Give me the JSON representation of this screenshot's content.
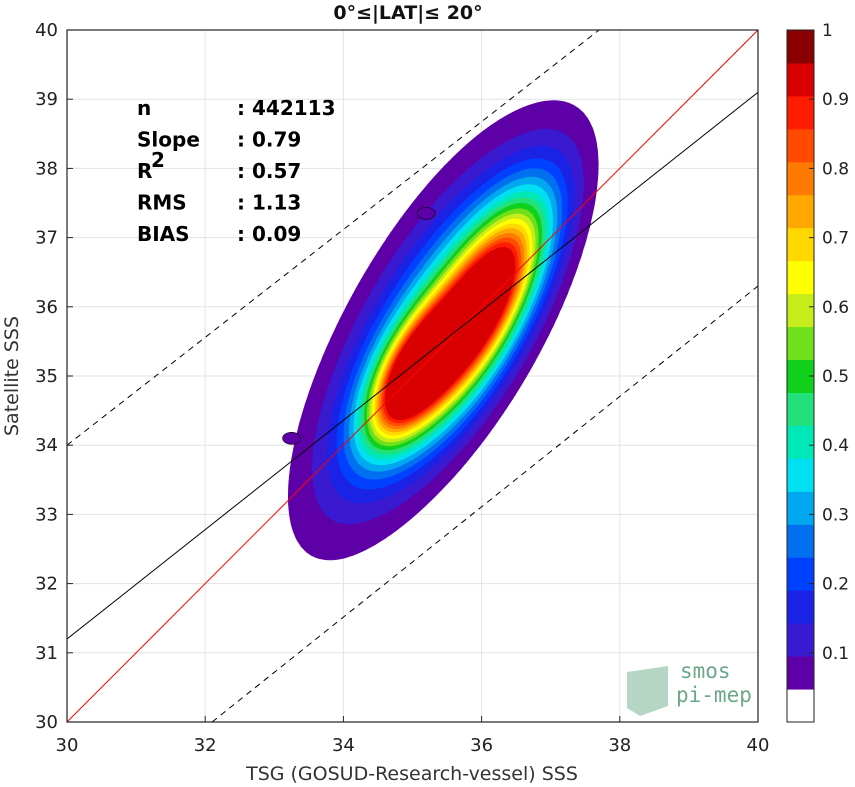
{
  "chart_data": {
    "type": "contour",
    "title": "0°≤|LAT|≤ 20°",
    "xlabel": "TSG (GOSUD-Research-vessel) SSS",
    "ylabel": "Satellite SSS",
    "xlim": [
      30,
      40
    ],
    "ylim": [
      30,
      40
    ],
    "xticks": [
      "30",
      "32",
      "34",
      "36",
      "38",
      "40"
    ],
    "yticks": [
      "30",
      "31",
      "32",
      "33",
      "34",
      "35",
      "36",
      "37",
      "38",
      "39",
      "40"
    ],
    "grid": true,
    "stats": [
      {
        "label": "n",
        "sep": ":",
        "value": "442113"
      },
      {
        "label": "Slope",
        "sep": ":",
        "value": "0.79"
      },
      {
        "label": "R",
        "sup": "2",
        "sep": ":",
        "value": "0.57"
      },
      {
        "label": "RMS",
        "sep": ":",
        "value": "1.13"
      },
      {
        "label": "BIAS",
        "sep": ":",
        "value": "0.09"
      }
    ],
    "lines": [
      {
        "name": "one-to-one",
        "color": "#ff0000",
        "style": "solid",
        "points": [
          [
            30,
            30
          ],
          [
            40,
            40
          ]
        ]
      },
      {
        "name": "regression",
        "color": "#000000",
        "style": "solid",
        "points": [
          [
            30,
            31.2
          ],
          [
            40,
            39.1
          ]
        ]
      },
      {
        "name": "upper-bound",
        "color": "#000000",
        "style": "dashed",
        "points": [
          [
            30,
            34.0
          ],
          [
            37.7,
            40
          ]
        ]
      },
      {
        "name": "lower-bound",
        "color": "#000000",
        "style": "dashed",
        "points": [
          [
            32.1,
            30
          ],
          [
            40,
            36.3
          ]
        ]
      }
    ],
    "density": {
      "mode_centers": [
        {
          "x": 36.0,
          "y": 36.0,
          "amp": 1.0,
          "sx": 0.62,
          "sy": 1.0,
          "rho": 0.72
        },
        {
          "x": 35.0,
          "y": 35.0,
          "amp": 0.82,
          "sx": 0.42,
          "sy": 0.62,
          "rho": 0.6
        },
        {
          "x": 35.3,
          "y": 35.6,
          "amp": 0.45,
          "sx": 1.0,
          "sy": 1.55,
          "rho": 0.72
        }
      ],
      "islands": [
        {
          "x": 33.25,
          "y": 34.1
        },
        {
          "x": 35.2,
          "y": 37.35
        }
      ]
    },
    "colorbar": {
      "min": 0,
      "max": 1,
      "ticks": [
        "0.1",
        "0.2",
        "0.3",
        "0.4",
        "0.5",
        "0.6",
        "0.7",
        "0.8",
        "0.9",
        "1"
      ],
      "colors": [
        "#ffffff",
        "#5e00a8",
        "#3a1ad0",
        "#1a22e6",
        "#0040ff",
        "#0070f0",
        "#00a8f0",
        "#00e0f0",
        "#00e8b8",
        "#22e07a",
        "#10d01c",
        "#70e01a",
        "#c6ec1a",
        "#ffff00",
        "#ffd800",
        "#ffa800",
        "#ff7a00",
        "#ff4a00",
        "#ff1c00",
        "#d80000",
        "#8a0000"
      ]
    }
  },
  "logo": {
    "line1": "smos",
    "line2": "pi-mep"
  }
}
